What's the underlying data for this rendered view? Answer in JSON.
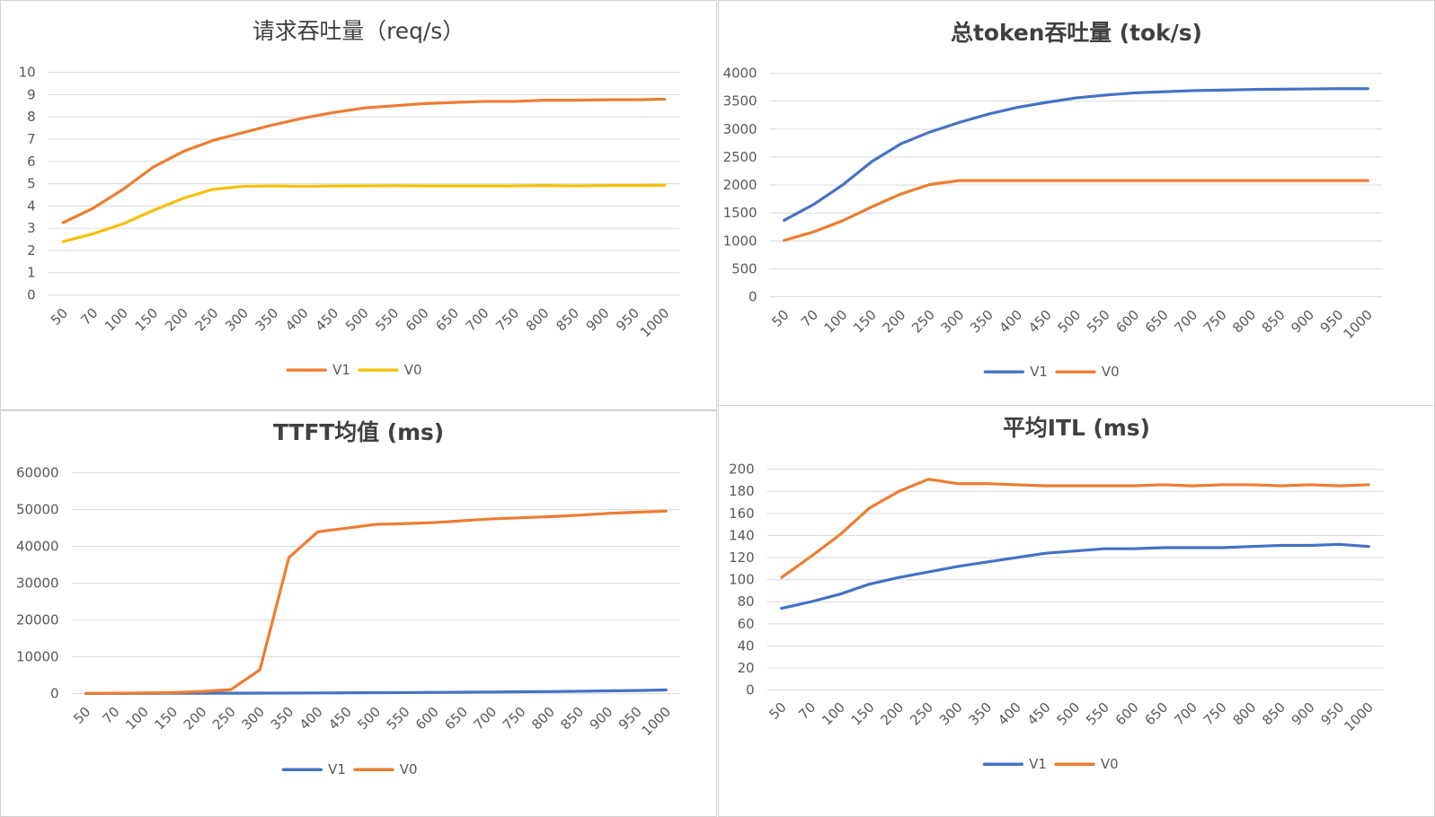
{
  "colors": {
    "orange": "#ED7D31",
    "yellow": "#F5C000",
    "blue": "#4472C4"
  },
  "chart_data": [
    {
      "type": "line",
      "title": "请求吞吐量（req/s）",
      "categories": [
        "50",
        "70",
        "100",
        "150",
        "200",
        "250",
        "300",
        "350",
        "400",
        "450",
        "500",
        "550",
        "600",
        "650",
        "700",
        "750",
        "800",
        "850",
        "900",
        "950",
        "1000"
      ],
      "ylim": [
        0,
        10
      ],
      "yticks": [
        "0",
        "1",
        "2",
        "3",
        "4",
        "5",
        "6",
        "7",
        "8",
        "9",
        "10"
      ],
      "grid": true,
      "legend_position": "bottom",
      "series": [
        {
          "name": "V1",
          "color": "#ED7D31",
          "values": [
            3.25,
            3.9,
            4.75,
            5.75,
            6.45,
            6.95,
            7.3,
            7.65,
            7.95,
            8.2,
            8.4,
            8.5,
            8.6,
            8.65,
            8.7,
            8.7,
            8.75,
            8.75,
            8.77,
            8.77,
            8.8
          ]
        },
        {
          "name": "V0",
          "color": "#F5C000",
          "values": [
            2.4,
            2.75,
            3.2,
            3.8,
            4.35,
            4.75,
            4.88,
            4.9,
            4.88,
            4.9,
            4.9,
            4.91,
            4.9,
            4.9,
            4.9,
            4.9,
            4.92,
            4.9,
            4.92,
            4.92,
            4.93
          ]
        }
      ]
    },
    {
      "type": "line",
      "title": "总token吞吐量 (tok/s)",
      "categories": [
        "50",
        "70",
        "100",
        "150",
        "200",
        "250",
        "300",
        "350",
        "400",
        "450",
        "500",
        "550",
        "600",
        "650",
        "700",
        "750",
        "800",
        "850",
        "900",
        "950",
        "1000"
      ],
      "ylim": [
        0,
        4000
      ],
      "yticks": [
        "0",
        "500",
        "1000",
        "1500",
        "2000",
        "2500",
        "3000",
        "3500",
        "4000"
      ],
      "grid": true,
      "legend_position": "bottom",
      "series": [
        {
          "name": "V1",
          "color": "#4472C4",
          "values": [
            1370,
            1650,
            2000,
            2420,
            2740,
            2950,
            3120,
            3270,
            3390,
            3480,
            3560,
            3610,
            3650,
            3670,
            3690,
            3700,
            3710,
            3715,
            3720,
            3725,
            3725
          ]
        },
        {
          "name": "V0",
          "color": "#ED7D31",
          "values": [
            1010,
            1160,
            1360,
            1610,
            1840,
            2010,
            2080,
            2080,
            2080,
            2080,
            2080,
            2080,
            2080,
            2080,
            2080,
            2080,
            2080,
            2080,
            2080,
            2080,
            2080
          ]
        }
      ]
    },
    {
      "type": "line",
      "title": "TTFT均值 (ms)",
      "categories": [
        "50",
        "70",
        "100",
        "150",
        "200",
        "250",
        "300",
        "350",
        "400",
        "450",
        "500",
        "550",
        "600",
        "650",
        "700",
        "750",
        "800",
        "850",
        "900",
        "950",
        "1000"
      ],
      "ylim": [
        0,
        60000
      ],
      "yticks": [
        "0",
        "10000",
        "20000",
        "30000",
        "40000",
        "50000",
        "60000"
      ],
      "grid": true,
      "legend_position": "bottom",
      "series": [
        {
          "name": "V1",
          "color": "#4472C4",
          "values": [
            50,
            60,
            70,
            90,
            110,
            130,
            150,
            170,
            200,
            230,
            260,
            300,
            340,
            390,
            440,
            500,
            570,
            650,
            750,
            850,
            1000
          ]
        },
        {
          "name": "V0",
          "color": "#ED7D31",
          "values": [
            80,
            120,
            200,
            300,
            600,
            1100,
            6500,
            37000,
            44000,
            45000,
            46000,
            46200,
            46500,
            47000,
            47500,
            47800,
            48100,
            48500,
            49000,
            49300,
            49600
          ]
        }
      ]
    },
    {
      "type": "line",
      "title": "平均ITL (ms)",
      "categories": [
        "50",
        "70",
        "100",
        "150",
        "200",
        "250",
        "300",
        "350",
        "400",
        "450",
        "500",
        "550",
        "600",
        "650",
        "700",
        "750",
        "800",
        "850",
        "900",
        "950",
        "1000"
      ],
      "ylim": [
        0,
        200
      ],
      "yticks": [
        "0",
        "20",
        "40",
        "60",
        "80",
        "100",
        "120",
        "140",
        "160",
        "180",
        "200"
      ],
      "grid": true,
      "legend_position": "bottom",
      "series": [
        {
          "name": "V1",
          "color": "#4472C4",
          "values": [
            74,
            80,
            87,
            96,
            102,
            107,
            112,
            116,
            120,
            124,
            126,
            128,
            128,
            129,
            129,
            129,
            130,
            131,
            131,
            132,
            130
          ]
        },
        {
          "name": "V0",
          "color": "#ED7D31",
          "values": [
            102,
            121,
            141,
            165,
            180,
            191,
            187,
            187,
            186,
            185,
            185,
            185,
            185,
            186,
            185,
            186,
            186,
            185,
            186,
            185,
            186
          ]
        }
      ]
    }
  ]
}
